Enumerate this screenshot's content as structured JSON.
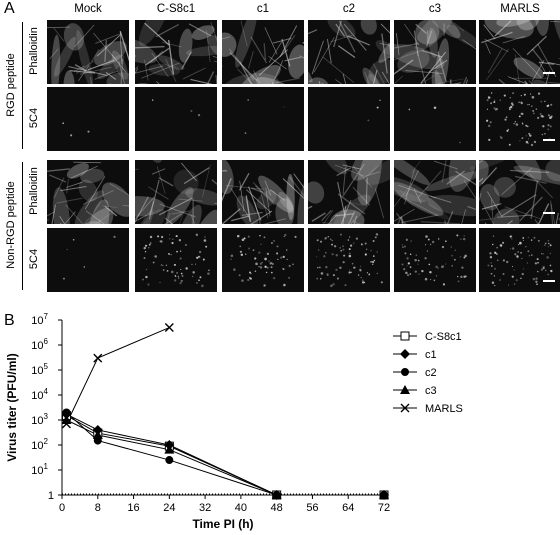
{
  "panel_a": {
    "letter": "A",
    "columns": [
      "Mock",
      "C-S8c1",
      "c1",
      "c2",
      "c3",
      "MARLS"
    ],
    "groups": [
      {
        "label": "RGD peptide",
        "rows": [
          "Phalloidin",
          "5C4"
        ]
      },
      {
        "label": "Non-RGD peptide",
        "rows": [
          "Phalloidin",
          "5C4"
        ]
      }
    ],
    "stain_intensity": [
      [
        0.9,
        0.85,
        0.8,
        0.8,
        0.75,
        0.85
      ],
      [
        0.02,
        0.02,
        0.02,
        0.02,
        0.02,
        0.55
      ],
      [
        0.75,
        0.7,
        0.85,
        0.8,
        0.6,
        0.75
      ],
      [
        0.03,
        0.45,
        0.4,
        0.5,
        0.4,
        0.5
      ]
    ],
    "colors": {
      "cell_stain": "#d8d8d8",
      "background": "#0d0d0d",
      "scale_bar": "#ffffff"
    }
  },
  "panel_b": {
    "letter": "B",
    "chart_data": {
      "type": "line",
      "xlabel": "Time PI (h)",
      "ylabel": "Virus titer (PFU/ml)",
      "x_ticks": [
        0,
        8,
        16,
        24,
        32,
        40,
        48,
        56,
        64,
        72
      ],
      "y_scale": "log",
      "ylim": [
        1,
        10000000
      ],
      "xlim": [
        0,
        72
      ],
      "y_tick_labels": [
        {
          "value": 1,
          "base": "1",
          "exp": ""
        },
        {
          "value": 10,
          "base": "10",
          "exp": "1"
        },
        {
          "value": 100,
          "base": "10",
          "exp": "2"
        },
        {
          "value": 1000,
          "base": "10",
          "exp": "3"
        },
        {
          "value": 10000,
          "base": "10",
          "exp": "4"
        },
        {
          "value": 100000,
          "base": "10",
          "exp": "5"
        },
        {
          "value": 1000000,
          "base": "10",
          "exp": "6"
        },
        {
          "value": 10000000,
          "base": "10",
          "exp": "7"
        }
      ],
      "grid": false,
      "legend_position": "right",
      "series": [
        {
          "name": "C-S8c1",
          "marker": "open-square",
          "x": [
            1,
            8,
            24,
            48,
            72
          ],
          "y": [
            1500,
            300,
            90,
            1,
            1
          ]
        },
        {
          "name": "c1",
          "marker": "diamond",
          "x": [
            1,
            8,
            24,
            48,
            72
          ],
          "y": [
            1700,
            400,
            100,
            1,
            1
          ]
        },
        {
          "name": "c2",
          "marker": "circle",
          "x": [
            1,
            8,
            24,
            48,
            72
          ],
          "y": [
            2000,
            150,
            25,
            1,
            1
          ]
        },
        {
          "name": "c3",
          "marker": "triangle",
          "x": [
            1,
            8,
            24,
            48,
            72
          ],
          "y": [
            1000,
            250,
            65,
            1,
            1
          ]
        },
        {
          "name": "MARLS",
          "marker": "x",
          "x": [
            1,
            8,
            24
          ],
          "y": [
            700,
            300000,
            5000000
          ]
        }
      ]
    }
  }
}
